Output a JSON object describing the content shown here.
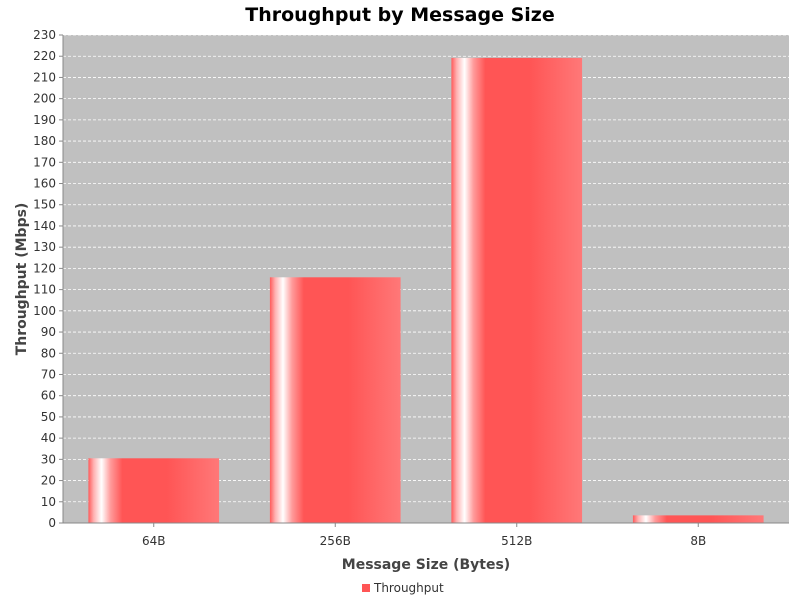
{
  "chart_data": {
    "type": "bar",
    "title": "Throughput by Message Size",
    "xlabel": "Message Size (Bytes)",
    "ylabel": "Throughput (Mbps)",
    "categories": [
      "64B",
      "256B",
      "512B",
      "8B"
    ],
    "series": [
      {
        "name": "Throughput",
        "values": [
          30.5,
          115.8,
          219.2,
          3.6
        ],
        "color": "#ff5555"
      }
    ],
    "ylim": [
      0,
      230
    ],
    "yticks": [
      0,
      10,
      20,
      30,
      40,
      50,
      60,
      70,
      80,
      90,
      100,
      110,
      120,
      130,
      140,
      150,
      160,
      170,
      180,
      190,
      200,
      210,
      220,
      230
    ],
    "grid": true,
    "legend": "bottom-center",
    "plot_background": "#c0c0c0"
  }
}
